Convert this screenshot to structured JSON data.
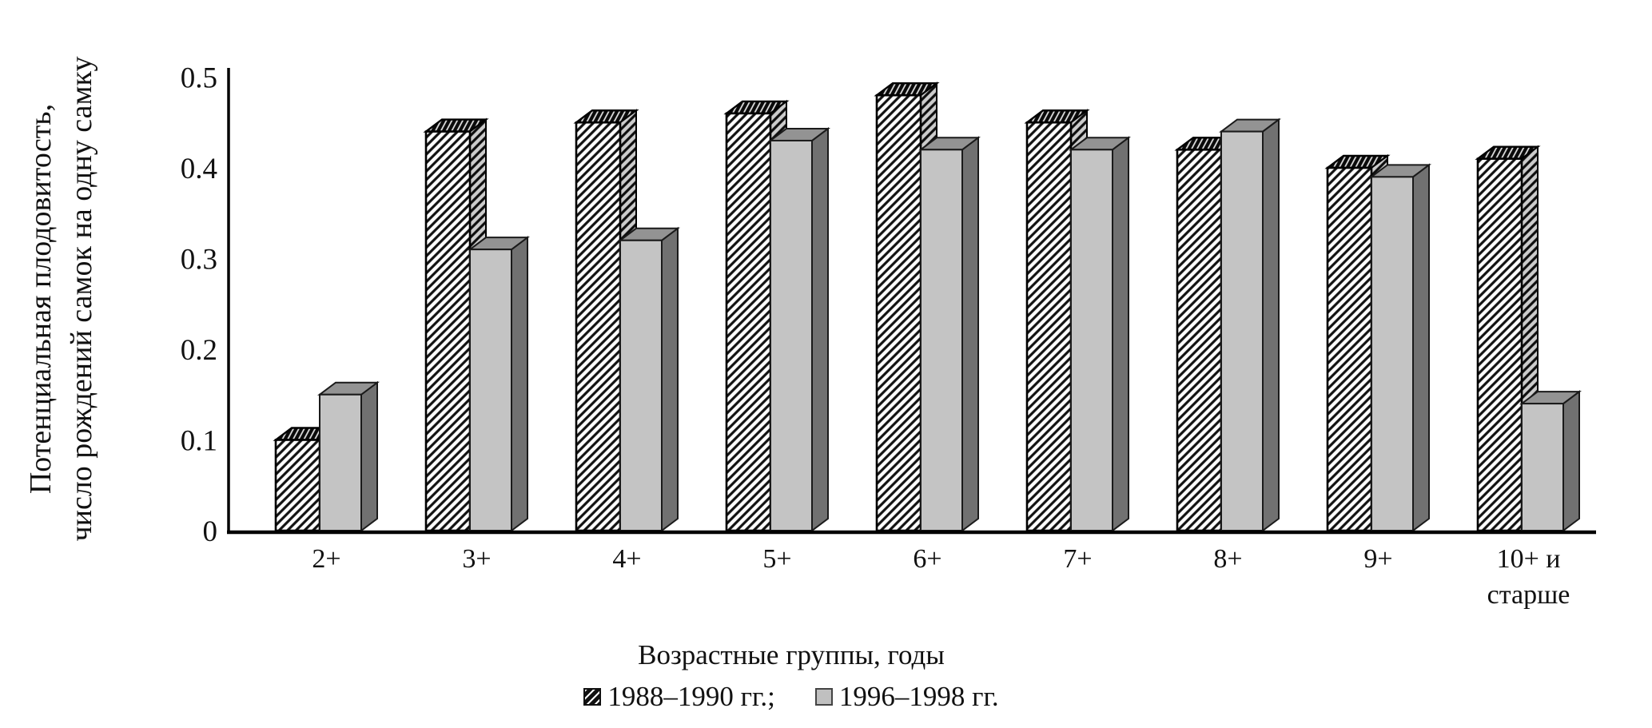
{
  "chart_data": {
    "type": "bar",
    "style_3d": true,
    "grid": false,
    "categories": [
      "2+",
      "3+",
      "4+",
      "5+",
      "6+",
      "7+",
      "8+",
      "9+",
      "10+ и старше"
    ],
    "series": [
      {
        "name": "1988–1990 гг.",
        "pattern": "black-diagonal-hatch",
        "values": [
          0.1,
          0.44,
          0.45,
          0.46,
          0.48,
          0.45,
          0.42,
          0.4,
          0.41
        ]
      },
      {
        "name": "1996–1998 гг.",
        "pattern": "solid-gray",
        "values": [
          0.15,
          0.31,
          0.32,
          0.43,
          0.42,
          0.42,
          0.44,
          0.39,
          0.14
        ]
      }
    ],
    "title": "",
    "xlabel": "Возрастные группы, годы",
    "ylabel_lines": [
      "Потенциальная плодовитость,",
      "число рождений самок на одну самку"
    ],
    "ylim": [
      0,
      0.5
    ],
    "ytick_labels": [
      "0",
      "0.1",
      "0.2",
      "0.3",
      "0.4",
      "0.5"
    ],
    "legend_position": "bottom"
  },
  "legend": {
    "items": [
      {
        "label": "1988–1990 гг.;",
        "swatch": "hatched"
      },
      {
        "label": "1996–1998 гг.",
        "swatch": "gray"
      }
    ]
  },
  "colors": {
    "background": "#ffffff",
    "axis": "#000000",
    "text": "#111111",
    "hatch_line": "#111111",
    "bar_gray_front": "#c4c4c4",
    "bar_gray_top": "#939393",
    "bar_gray_side": "#717171"
  }
}
